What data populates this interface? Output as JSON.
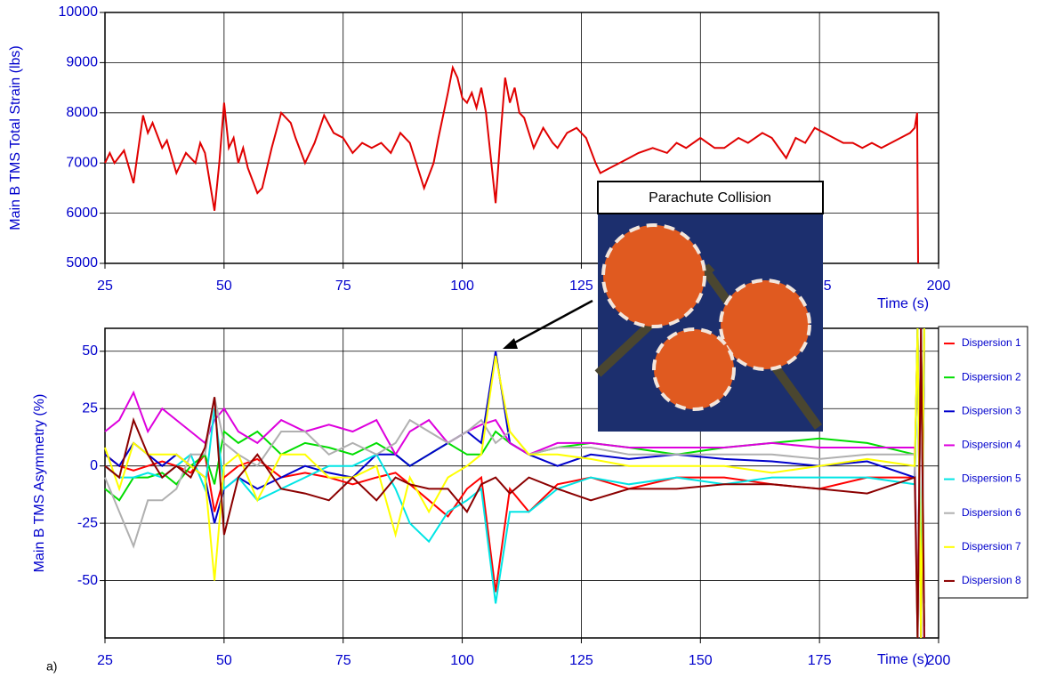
{
  "chart_data": [
    {
      "type": "line",
      "ylabel": "Main B TMS Total Strain (lbs)",
      "xlabel": "Time (s)",
      "xlim": [
        25,
        200
      ],
      "xticks": [
        25,
        50,
        75,
        100,
        125,
        150,
        175,
        200
      ],
      "ylim": [
        5000,
        10000
      ],
      "yticks": [
        5000,
        6000,
        7000,
        8000,
        9000,
        10000
      ],
      "grid": true,
      "color": "#e00000",
      "x": [
        25,
        26,
        27,
        29,
        31,
        33,
        34,
        35,
        37,
        38,
        40,
        42,
        44,
        45,
        46,
        48,
        49,
        50,
        51,
        52,
        53,
        54,
        55,
        57,
        58,
        60,
        62,
        64,
        65,
        67,
        69,
        71,
        73,
        75,
        77,
        79,
        81,
        83,
        85,
        87,
        89,
        91,
        92,
        94,
        95,
        97,
        98,
        99,
        100,
        101,
        102,
        103,
        104,
        105,
        107,
        108,
        109,
        110,
        111,
        112,
        113,
        115,
        117,
        119,
        120,
        122,
        124,
        126,
        128,
        129,
        131,
        133,
        135,
        137,
        140,
        143,
        145,
        147,
        150,
        153,
        155,
        158,
        160,
        163,
        165,
        168,
        170,
        172,
        174,
        176,
        178,
        180,
        182,
        184,
        186,
        188,
        190,
        192,
        194,
        195,
        195.5,
        195.7
      ],
      "values": [
        7000,
        7200,
        7000,
        7250,
        6600,
        7950,
        7600,
        7800,
        7300,
        7450,
        6800,
        7200,
        7000,
        7400,
        7200,
        6050,
        7000,
        8200,
        7300,
        7500,
        7000,
        7300,
        6900,
        6400,
        6500,
        7300,
        8000,
        7800,
        7500,
        7000,
        7400,
        7950,
        7600,
        7500,
        7200,
        7400,
        7300,
        7400,
        7200,
        7600,
        7400,
        6800,
        6500,
        7000,
        7500,
        8400,
        8900,
        8700,
        8300,
        8200,
        8400,
        8100,
        8500,
        8000,
        6200,
        7500,
        8700,
        8200,
        8500,
        8000,
        7900,
        7300,
        7700,
        7400,
        7300,
        7600,
        7700,
        7500,
        7000,
        6800,
        6900,
        7000,
        7100,
        7200,
        7300,
        7200,
        7400,
        7300,
        7500,
        7300,
        7300,
        7500,
        7400,
        7600,
        7500,
        7100,
        7500,
        7400,
        7700,
        7600,
        7500,
        7400,
        7400,
        7300,
        7400,
        7300,
        7400,
        7500,
        7600,
        7700,
        8000,
        5000
      ]
    },
    {
      "type": "line",
      "ylabel": "Main B TMS Asymmetry (%)",
      "xlabel": "Time (s)",
      "annotation": "Parachute Collision",
      "panel_label": "a)",
      "xlim": [
        25,
        200
      ],
      "xticks": [
        25,
        50,
        75,
        100,
        125,
        150,
        175,
        200
      ],
      "ylim": [
        -75,
        60
      ],
      "yticks": [
        -50,
        -25,
        0,
        25,
        50
      ],
      "grid": true,
      "x": [
        25,
        28,
        31,
        34,
        37,
        40,
        43,
        46,
        48,
        50,
        53,
        57,
        62,
        67,
        72,
        77,
        82,
        86,
        89,
        93,
        97,
        101,
        104,
        107,
        110,
        114,
        120,
        127,
        135,
        145,
        155,
        165,
        175,
        185,
        195,
        195.6,
        196.3,
        197
      ],
      "series": [
        {
          "name": "Dispersion 1",
          "color": "#ff0000",
          "values": [
            5,
            0,
            -2,
            0,
            2,
            0,
            -3,
            5,
            -20,
            -5,
            0,
            3,
            -5,
            -3,
            -5,
            -8,
            -5,
            -3,
            -8,
            -15,
            -22,
            -10,
            -5,
            -55,
            -10,
            -20,
            -8,
            -5,
            -10,
            -5,
            -5,
            -8,
            -10,
            -5,
            -5,
            60,
            -75,
            60
          ]
        },
        {
          "name": "Dispersion 2",
          "color": "#00dd00",
          "values": [
            -10,
            -15,
            -5,
            -5,
            -3,
            -8,
            0,
            5,
            -8,
            15,
            10,
            15,
            5,
            10,
            8,
            5,
            10,
            5,
            0,
            5,
            10,
            5,
            5,
            15,
            10,
            5,
            8,
            10,
            8,
            5,
            8,
            10,
            12,
            10,
            5,
            -75,
            60,
            -70
          ]
        },
        {
          "name": "Dispersion 3",
          "color": "#0000cc",
          "values": [
            5,
            0,
            10,
            5,
            0,
            5,
            0,
            -5,
            -25,
            -10,
            -5,
            -10,
            -5,
            0,
            -3,
            -5,
            5,
            5,
            0,
            5,
            10,
            15,
            10,
            50,
            10,
            5,
            0,
            5,
            3,
            5,
            3,
            2,
            0,
            2,
            -5,
            60,
            -75,
            50
          ]
        },
        {
          "name": "Dispersion 4",
          "color": "#dd00dd",
          "values": [
            15,
            20,
            32,
            15,
            25,
            20,
            15,
            10,
            20,
            25,
            15,
            10,
            20,
            15,
            18,
            15,
            20,
            5,
            15,
            20,
            10,
            15,
            18,
            20,
            10,
            5,
            10,
            10,
            8,
            8,
            8,
            10,
            8,
            8,
            8,
            -70,
            60,
            -75
          ]
        },
        {
          "name": "Dispersion 5",
          "color": "#00e5e5",
          "values": [
            0,
            -5,
            -5,
            -3,
            -5,
            0,
            5,
            -10,
            25,
            -10,
            -5,
            -15,
            -10,
            -5,
            0,
            0,
            5,
            -10,
            -25,
            -33,
            -20,
            -15,
            -10,
            -60,
            -20,
            -20,
            -10,
            -5,
            -8,
            -5,
            -8,
            -5,
            -5,
            -5,
            -8,
            60,
            -60,
            60
          ]
        },
        {
          "name": "Dispersion 6",
          "color": "#b0b0b0",
          "values": [
            -5,
            -20,
            -35,
            -15,
            -15,
            -10,
            5,
            5,
            30,
            10,
            5,
            0,
            15,
            15,
            5,
            10,
            5,
            10,
            20,
            15,
            10,
            15,
            20,
            10,
            15,
            5,
            8,
            8,
            5,
            5,
            5,
            5,
            3,
            5,
            5,
            -75,
            60,
            -60
          ]
        },
        {
          "name": "Dispersion 7",
          "color": "#ffff00",
          "values": [
            8,
            -10,
            10,
            5,
            5,
            5,
            0,
            -5,
            -50,
            0,
            5,
            -15,
            5,
            5,
            -5,
            -5,
            0,
            -30,
            -5,
            -20,
            -5,
            0,
            5,
            48,
            15,
            5,
            5,
            3,
            0,
            0,
            0,
            -3,
            0,
            3,
            0,
            60,
            -75,
            60
          ]
        },
        {
          "name": "Dispersion 8",
          "color": "#8b0000",
          "values": [
            0,
            -5,
            20,
            5,
            -5,
            0,
            -5,
            8,
            30,
            -30,
            -5,
            5,
            -10,
            -12,
            -15,
            -5,
            -15,
            -5,
            -8,
            -10,
            -10,
            -20,
            -8,
            -5,
            -12,
            -5,
            -10,
            -15,
            -10,
            -10,
            -8,
            -8,
            -10,
            -12,
            -5,
            -75,
            60,
            -75
          ]
        }
      ]
    }
  ]
}
